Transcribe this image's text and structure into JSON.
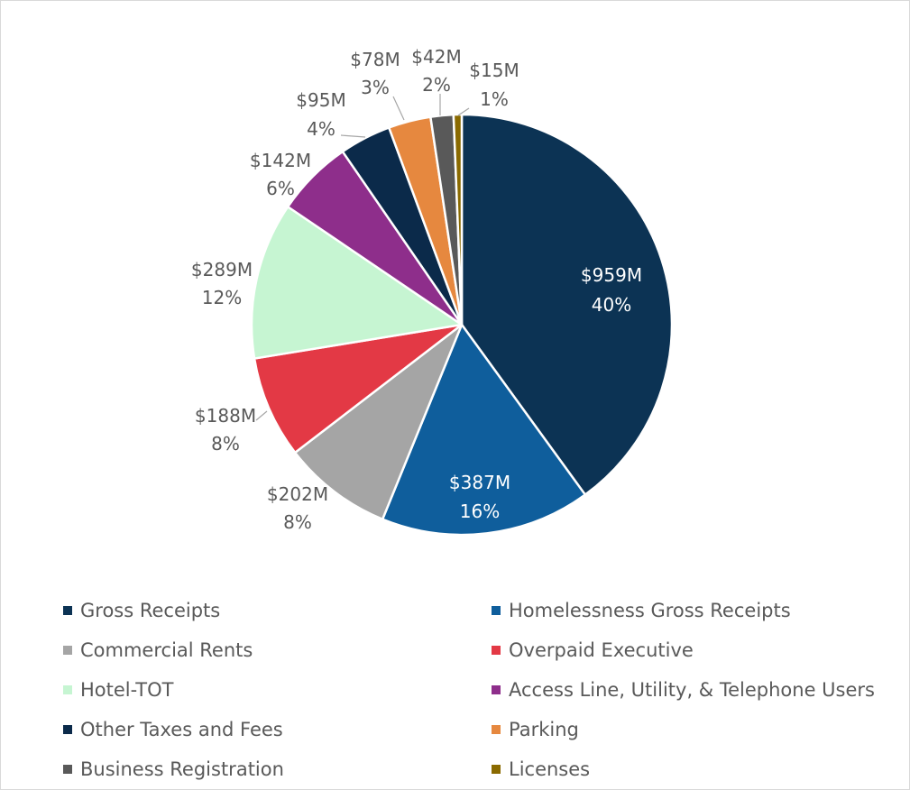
{
  "chart_data": {
    "type": "pie",
    "title": "",
    "legend_position": "bottom",
    "slices": [
      {
        "name": "Gross Receipts",
        "value": 959,
        "value_label": "$959M",
        "percent_label": "40%",
        "color": "#0c3354"
      },
      {
        "name": "Homelessness Gross Receipts",
        "value": 387,
        "value_label": "$387M",
        "percent_label": "16%",
        "color": "#0f5e9c"
      },
      {
        "name": "Commercial Rents",
        "value": 202,
        "value_label": "$202M",
        "percent_label": "8%",
        "color": "#a5a5a5"
      },
      {
        "name": "Overpaid Executive",
        "value": 188,
        "value_label": "$188M",
        "percent_label": "8%",
        "color": "#e33945"
      },
      {
        "name": "Hotel-TOT",
        "value": 289,
        "value_label": "$289M",
        "percent_label": "12%",
        "color": "#c6f5d2"
      },
      {
        "name": "Access Line, Utility, & Telephone Users",
        "value": 142,
        "value_label": "$142M",
        "percent_label": "6%",
        "color": "#8e2e8b"
      },
      {
        "name": "Other Taxes and Fees",
        "value": 95,
        "value_label": "$95M",
        "percent_label": "4%",
        "color": "#0b2a4a"
      },
      {
        "name": "Parking",
        "value": 78,
        "value_label": "$78M",
        "percent_label": "3%",
        "color": "#e6883f"
      },
      {
        "name": "Business Registration",
        "value": 42,
        "value_label": "$42M",
        "percent_label": "2%",
        "color": "#595959"
      },
      {
        "name": "Licenses",
        "value": 15,
        "value_label": "$15M",
        "percent_label": "1%",
        "color": "#8a6a00"
      }
    ]
  }
}
